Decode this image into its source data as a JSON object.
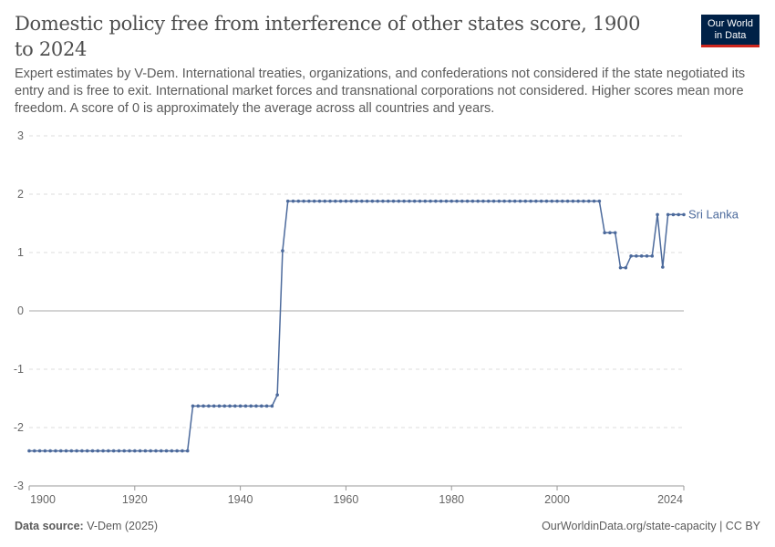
{
  "title": "Domestic policy free from interference of other states score, 1900 to 2024",
  "subtitle": "Expert estimates by V-Dem. International treaties, organizations, and confederations not considered if the state negotiated its entry and is free to exit. International market forces and transnational corporations not considered. Higher scores mean more freedom. A score of 0 is approximately the average across all countries and years.",
  "logo": "Our World in Data",
  "footer": {
    "source_label": "Data source:",
    "source": "V-Dem (2025)",
    "right": "OurWorldinData.org/state-capacity | CC BY"
  },
  "chart_data": {
    "type": "line",
    "xlim": [
      1900,
      2024
    ],
    "ylim": [
      -3,
      3
    ],
    "xticks": [
      1900,
      1920,
      1940,
      1960,
      1980,
      2000,
      2024
    ],
    "yticks": [
      -3,
      -2,
      -1,
      0,
      1,
      2,
      3
    ],
    "grid": true,
    "series": [
      {
        "name": "Sri Lanka",
        "color": "#4c6a9c",
        "segments": [
          {
            "from": 1900,
            "to": 1930,
            "value": -2.4
          },
          {
            "from": 1931,
            "to": 1946,
            "value": -1.63
          },
          {
            "from": 1947,
            "to": 1947,
            "value": -1.44
          },
          {
            "from": 1948,
            "to": 1948,
            "value": 1.03
          },
          {
            "from": 1949,
            "to": 2008,
            "value": 1.88
          },
          {
            "from": 2009,
            "to": 2011,
            "value": 1.34
          },
          {
            "from": 2012,
            "to": 2013,
            "value": 0.74
          },
          {
            "from": 2014,
            "to": 2018,
            "value": 0.94
          },
          {
            "from": 2019,
            "to": 2019,
            "value": 1.65
          },
          {
            "from": 2020,
            "to": 2020,
            "value": 0.75
          },
          {
            "from": 2021,
            "to": 2024,
            "value": 1.65
          }
        ]
      }
    ]
  }
}
